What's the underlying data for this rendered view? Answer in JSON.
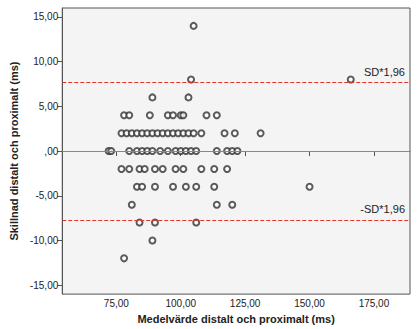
{
  "chart_data": {
    "type": "scatter",
    "x_label": "Medelvärde distalt och proximalt (ms)",
    "y_label": "Skillnad distalt och proximalt (ms)",
    "xlim": [
      54,
      189
    ],
    "ylim": [
      -16,
      16
    ],
    "xticks": [
      {
        "value": 75,
        "label": "75,00"
      },
      {
        "value": 100,
        "label": "100,00"
      },
      {
        "value": 125,
        "label": "125,00"
      },
      {
        "value": 150,
        "label": "150,00"
      },
      {
        "value": 175,
        "label": "175,00"
      }
    ],
    "yticks": [
      {
        "value": -15,
        "label": "-15,00"
      },
      {
        "value": -10,
        "label": "-10,00"
      },
      {
        "value": -5,
        "label": "-5,00"
      },
      {
        "value": 0,
        "label": ",00"
      },
      {
        "value": 5,
        "label": "5,00"
      },
      {
        "value": 10,
        "label": "10,00"
      },
      {
        "value": 15,
        "label": "15,00"
      }
    ],
    "grid": false,
    "marker": "circle",
    "color": "#333333",
    "mean_line": 0,
    "limits": [
      {
        "value": 7.7,
        "label": "SD*1,96"
      },
      {
        "value": -7.7,
        "label": "-SD*1,96"
      }
    ],
    "x": [
      72,
      78,
      80,
      88,
      95,
      97,
      100,
      101,
      110,
      114,
      89,
      103,
      77,
      79,
      81,
      83,
      85,
      87,
      89,
      91,
      93,
      95,
      97,
      99,
      101,
      103,
      105,
      108,
      117,
      121,
      131,
      73,
      80,
      83,
      85,
      87,
      89,
      92,
      95,
      98,
      100,
      102,
      104,
      106,
      114,
      118,
      120,
      122,
      77,
      80,
      84,
      86,
      90,
      93,
      98,
      101,
      108,
      113,
      118,
      83,
      85,
      90,
      97,
      102,
      106,
      113,
      150,
      81,
      114,
      120,
      84,
      90,
      106,
      89,
      78,
      104,
      166,
      105
    ],
    "values": [
      0,
      4,
      4,
      4,
      4,
      4,
      4,
      4,
      4,
      4,
      6,
      6,
      2,
      2,
      2,
      2,
      2,
      2,
      2,
      2,
      2,
      2,
      2,
      2,
      2,
      2,
      2,
      2,
      2,
      2,
      2,
      0,
      0,
      0,
      0,
      0,
      0,
      0,
      0,
      0,
      0,
      0,
      0,
      0,
      0,
      0,
      0,
      0,
      -2,
      -2,
      -2,
      -2,
      -2,
      -2,
      -2,
      -2,
      -2,
      -2,
      -2,
      -4,
      -4,
      -4,
      -4,
      -4,
      -4,
      -4,
      -4,
      -6,
      -6,
      -6,
      -8,
      -8,
      -8,
      -10,
      -12,
      8,
      8,
      14
    ]
  }
}
